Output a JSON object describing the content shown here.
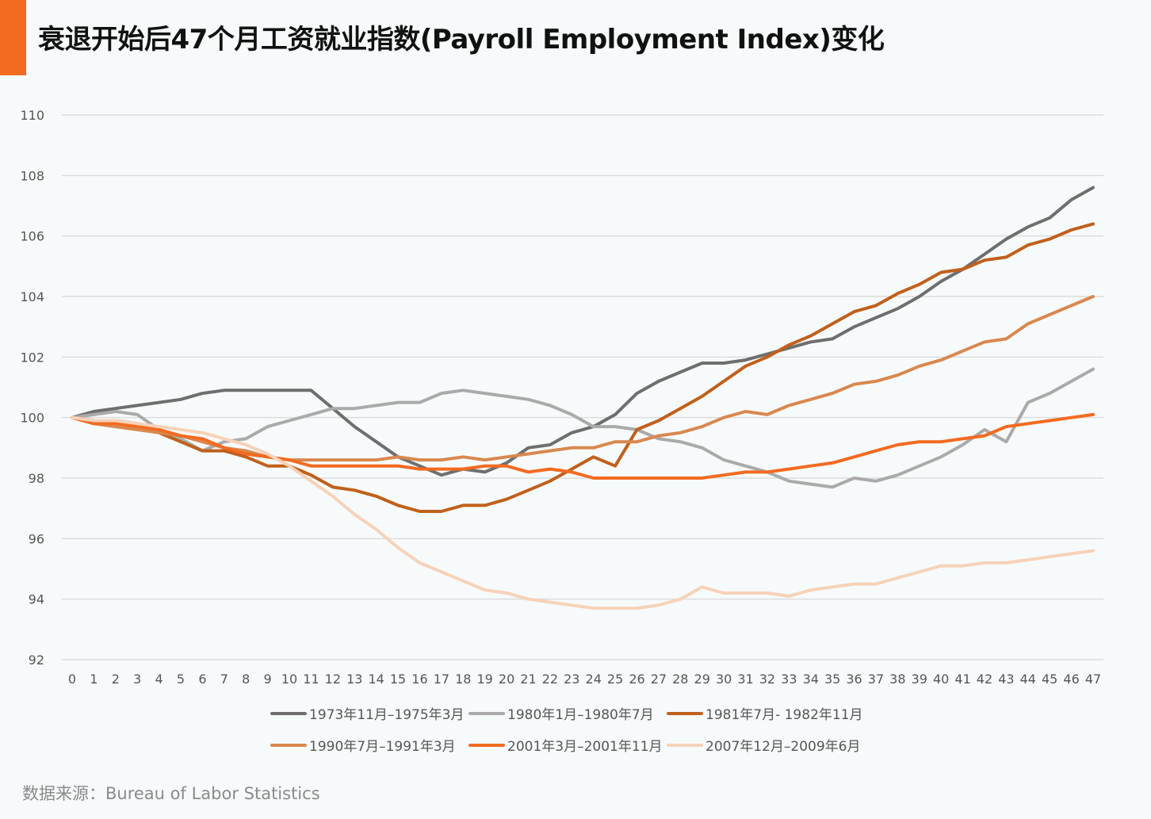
{
  "title": "衰退开始后47个月工资就业指数(Payroll Employment Index)变化",
  "source": "数据来源：Bureau of Labor Statistics",
  "colors": {
    "accent": "#f26b21",
    "grid": "#dcdcdc",
    "axis_text": "#555555"
  },
  "chart_data": {
    "type": "line",
    "title": "衰退开始后47个月工资就业指数(Payroll Employment Index)变化",
    "xlabel": "",
    "ylabel": "",
    "x": [
      0,
      1,
      2,
      3,
      4,
      5,
      6,
      7,
      8,
      9,
      10,
      11,
      12,
      13,
      14,
      15,
      16,
      17,
      18,
      19,
      20,
      21,
      22,
      23,
      24,
      25,
      26,
      27,
      28,
      29,
      30,
      31,
      32,
      33,
      34,
      35,
      36,
      37,
      38,
      39,
      40,
      41,
      42,
      43,
      44,
      45,
      46,
      47
    ],
    "ylim": [
      92,
      110
    ],
    "yticks": [
      92,
      94,
      96,
      98,
      100,
      102,
      104,
      106,
      108,
      110
    ],
    "grid": true,
    "legend_position": "bottom",
    "series": [
      {
        "name": "1973年11月–1975年3月",
        "color": "#6e6e6e",
        "values": [
          100,
          100.2,
          100.3,
          100.4,
          100.5,
          100.6,
          100.8,
          100.9,
          100.9,
          100.9,
          100.9,
          100.9,
          100.3,
          99.7,
          99.2,
          98.7,
          98.4,
          98.1,
          98.3,
          98.2,
          98.5,
          99.0,
          99.1,
          99.5,
          99.7,
          100.1,
          100.8,
          101.2,
          101.5,
          101.8,
          101.8,
          101.9,
          102.1,
          102.3,
          102.5,
          102.6,
          103.0,
          103.3,
          103.6,
          104.0,
          104.5,
          104.9,
          105.4,
          105.9,
          106.3,
          106.6,
          107.2,
          107.6
        ]
      },
      {
        "name": "1980年1月–1980年7月",
        "color": "#aaaaaa",
        "values": [
          100,
          100.1,
          100.2,
          100.1,
          99.6,
          99.3,
          98.9,
          99.2,
          99.3,
          99.7,
          99.9,
          100.1,
          100.3,
          100.3,
          100.4,
          100.5,
          100.5,
          100.8,
          100.9,
          100.8,
          100.7,
          100.6,
          100.4,
          100.1,
          99.7,
          99.7,
          99.6,
          99.3,
          99.2,
          99.0,
          98.6,
          98.4,
          98.2,
          97.9,
          97.8,
          97.7,
          98.0,
          97.9,
          98.1,
          98.4,
          98.7,
          99.1,
          99.6,
          99.2,
          100.5,
          100.8,
          101.2,
          101.6
        ]
      },
      {
        "name": "1981年7月- 1982年11月",
        "color": "#c0601c",
        "values": [
          100,
          99.9,
          99.9,
          99.8,
          99.5,
          99.2,
          98.9,
          98.9,
          98.7,
          98.4,
          98.4,
          98.1,
          97.7,
          97.6,
          97.4,
          97.1,
          96.9,
          96.9,
          97.1,
          97.1,
          97.3,
          97.6,
          97.9,
          98.3,
          98.7,
          98.4,
          99.6,
          99.9,
          100.3,
          100.7,
          101.2,
          101.7,
          102.0,
          102.4,
          102.7,
          103.1,
          103.5,
          103.7,
          104.1,
          104.4,
          104.8,
          104.9,
          105.2,
          105.3,
          105.7,
          105.9,
          106.2,
          106.4
        ]
      },
      {
        "name": "1990年7月–1991年3月",
        "color": "#d9884f",
        "values": [
          100,
          99.8,
          99.7,
          99.6,
          99.5,
          99.4,
          99.2,
          99.0,
          98.9,
          98.7,
          98.6,
          98.6,
          98.6,
          98.6,
          98.6,
          98.7,
          98.6,
          98.6,
          98.7,
          98.6,
          98.7,
          98.8,
          98.9,
          99.0,
          99.0,
          99.2,
          99.2,
          99.4,
          99.5,
          99.7,
          100.0,
          100.2,
          100.1,
          100.4,
          100.6,
          100.8,
          101.1,
          101.2,
          101.4,
          101.7,
          101.9,
          102.2,
          102.5,
          102.6,
          103.1,
          103.4,
          103.7,
          104.0
        ]
      },
      {
        "name": "2001年3月–2001年11月",
        "color": "#f26b21",
        "values": [
          100,
          99.8,
          99.8,
          99.7,
          99.6,
          99.4,
          99.3,
          99.0,
          98.8,
          98.7,
          98.6,
          98.4,
          98.4,
          98.4,
          98.4,
          98.4,
          98.3,
          98.3,
          98.3,
          98.4,
          98.4,
          98.2,
          98.3,
          98.2,
          98.0,
          98.0,
          98.0,
          98.0,
          98.0,
          98.0,
          98.1,
          98.2,
          98.2,
          98.3,
          98.4,
          98.5,
          98.7,
          98.9,
          99.1,
          99.2,
          99.2,
          99.3,
          99.4,
          99.7,
          99.8,
          99.9,
          100.0,
          100.1
        ]
      },
      {
        "name": "2007年12月–2009年6月",
        "color": "#f6d2b8",
        "values": [
          100,
          99.9,
          99.9,
          99.8,
          99.7,
          99.6,
          99.5,
          99.3,
          99.1,
          98.8,
          98.4,
          97.9,
          97.4,
          96.8,
          96.3,
          95.7,
          95.2,
          94.9,
          94.6,
          94.3,
          94.2,
          94.0,
          93.9,
          93.8,
          93.7,
          93.7,
          93.7,
          93.8,
          94.0,
          94.4,
          94.2,
          94.2,
          94.2,
          94.1,
          94.3,
          94.4,
          94.5,
          94.5,
          94.7,
          94.9,
          95.1,
          95.1,
          95.2,
          95.2,
          95.3,
          95.4,
          95.5,
          95.6
        ]
      }
    ]
  }
}
